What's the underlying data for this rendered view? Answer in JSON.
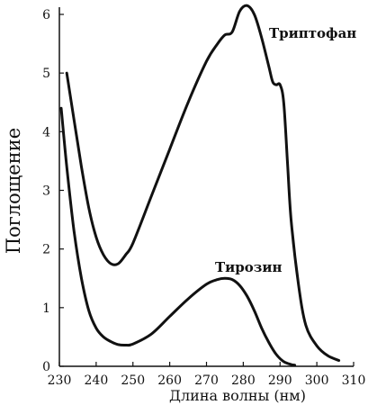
{
  "chart_data": {
    "type": "line",
    "xlabel": "Длина волны (нм)",
    "ylabel": "Поглощение",
    "xlim": [
      230,
      310
    ],
    "ylim": [
      0,
      6.2
    ],
    "xticks": [
      230,
      240,
      250,
      260,
      270,
      280,
      290,
      300,
      310
    ],
    "yticks": [
      0,
      1,
      2,
      3,
      4,
      5,
      6
    ],
    "grid": false,
    "series": [
      {
        "name": "Триптофан",
        "x": [
          232,
          234,
          236,
          238,
          240,
          242,
          244,
          246,
          248,
          250,
          255,
          260,
          265,
          270,
          273,
          275,
          277,
          279,
          281,
          283,
          285,
          287,
          288,
          289,
          290,
          291,
          292,
          293,
          295,
          297,
          300,
          303,
          306
        ],
        "y": [
          5.0,
          4.2,
          3.4,
          2.7,
          2.2,
          1.9,
          1.75,
          1.75,
          1.9,
          2.1,
          2.9,
          3.7,
          4.5,
          5.2,
          5.5,
          5.65,
          5.7,
          6.05,
          6.15,
          6.0,
          5.6,
          5.1,
          4.85,
          4.8,
          4.8,
          4.5,
          3.5,
          2.5,
          1.4,
          0.7,
          0.35,
          0.18,
          0.1
        ]
      },
      {
        "name": "Тирозин",
        "x": [
          230.5,
          232,
          234,
          236,
          238,
          240,
          242,
          244,
          246,
          248,
          250,
          255,
          260,
          265,
          270,
          273,
          275,
          277,
          279,
          281,
          283,
          285,
          287,
          289,
          291,
          293,
          294
        ],
        "y": [
          4.4,
          3.4,
          2.3,
          1.5,
          0.95,
          0.65,
          0.5,
          0.42,
          0.37,
          0.36,
          0.38,
          0.55,
          0.85,
          1.15,
          1.4,
          1.48,
          1.5,
          1.48,
          1.38,
          1.2,
          0.95,
          0.65,
          0.4,
          0.2,
          0.08,
          0.03,
          0.02
        ]
      }
    ]
  }
}
